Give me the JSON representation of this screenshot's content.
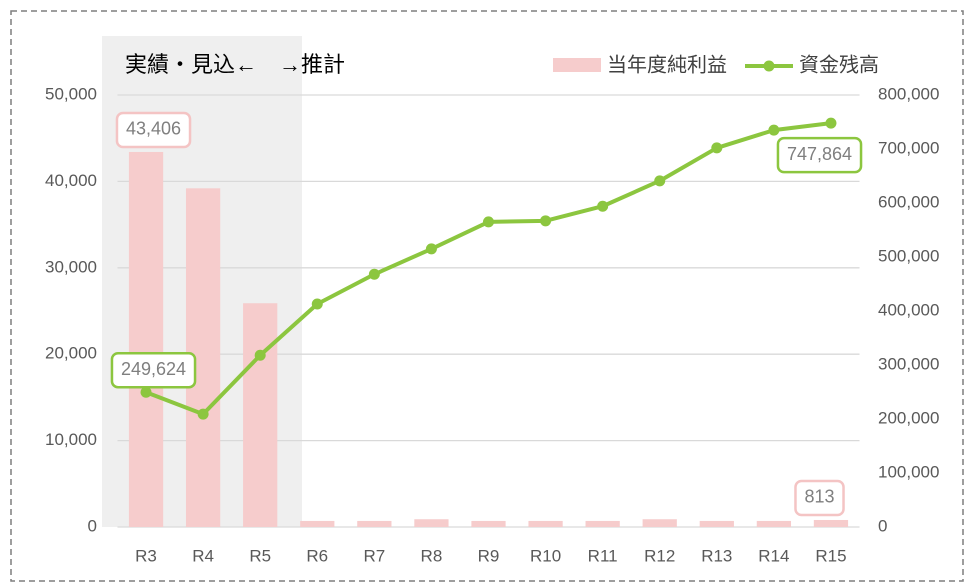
{
  "chart_data": {
    "type": "bar+line",
    "annotation": "実績・見込←　→推計",
    "categories": [
      "R3",
      "R4",
      "R5",
      "R6",
      "R7",
      "R8",
      "R9",
      "R10",
      "R11",
      "R12",
      "R13",
      "R14",
      "R15"
    ],
    "series": [
      {
        "name": "当年度純利益",
        "type": "bar",
        "color": "#f6cccc",
        "axis": "y",
        "values": [
          43406,
          39200,
          25900,
          700,
          700,
          900,
          700,
          700,
          700,
          900,
          700,
          700,
          813
        ],
        "value_labels": [
          "43,406",
          null,
          null,
          null,
          null,
          null,
          null,
          null,
          null,
          null,
          null,
          null,
          "813"
        ]
      },
      {
        "name": "資金残高",
        "type": "line",
        "color": "#8cc63f",
        "axis": "y2",
        "values": [
          249624,
          209000,
          318000,
          413000,
          468000,
          515000,
          565000,
          567000,
          594000,
          641000,
          702000,
          735000,
          747864
        ],
        "value_labels": [
          "249,624",
          null,
          null,
          null,
          null,
          null,
          null,
          null,
          null,
          null,
          null,
          null,
          "747,864"
        ]
      }
    ],
    "ylim": [
      0,
      50000
    ],
    "yticks": [
      0,
      {
        "value": 10000,
        "label": "10,000"
      },
      {
        "value": 20000,
        "label": "20,000"
      },
      {
        "value": 30000,
        "label": "30,000"
      },
      {
        "value": 40000,
        "label": "40,000"
      },
      {
        "value": 50000,
        "label": "50,000"
      }
    ],
    "y2lim": [
      0,
      800000
    ],
    "y2ticks": [
      0,
      {
        "value": 100000,
        "label": "100,000"
      },
      {
        "value": 200000,
        "label": "200,000"
      },
      {
        "value": 300000,
        "label": "300,000"
      },
      {
        "value": 400000,
        "label": "400,000"
      },
      {
        "value": 500000,
        "label": "500,000"
      },
      {
        "value": 600000,
        "label": "600,000"
      },
      {
        "value": 700000,
        "label": "700,000"
      },
      {
        "value": 800000,
        "label": "800,000"
      }
    ],
    "grid": true,
    "legend": "top-right"
  }
}
